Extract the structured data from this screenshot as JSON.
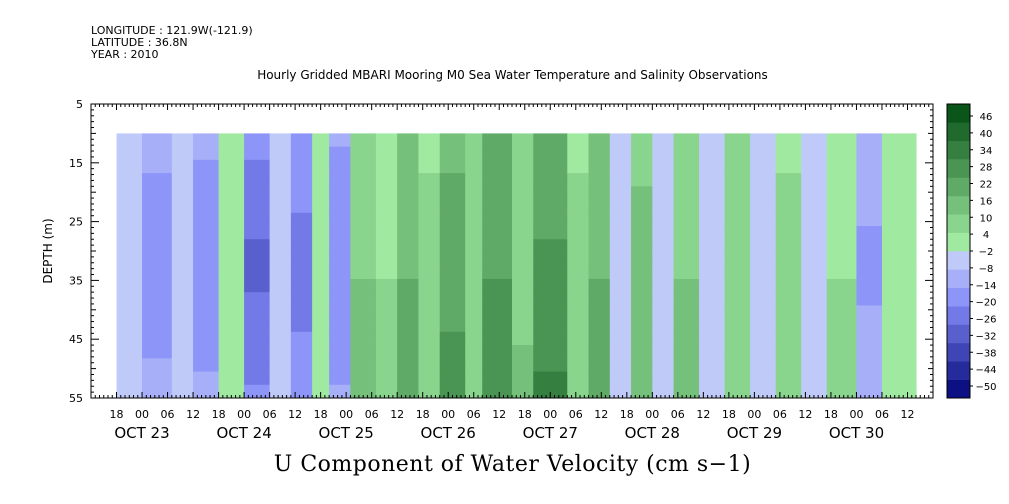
{
  "header": {
    "longitude": "LONGITUDE : 121.9W(-121.9)",
    "latitude": "LATITUDE : 36.8N",
    "year": "YEAR : 2010",
    "plot_title": "Hourly Gridded MBARI Mooring M0 Sea Water Temperature and Salinity Observations",
    "main_title": "U Component of Water Velocity (cm s−1)"
  },
  "chart_data": {
    "type": "heatmap",
    "title": "Hourly Gridded MBARI Mooring M0 Sea Water Temperature and Salinity Observations",
    "xlabel": "",
    "ylabel": "DEPTH (m)",
    "colorbar_label": "U Component of Water Velocity (cm s−1)",
    "depth_range": [
      5,
      55
    ],
    "depth_ticks": [
      "5",
      "15",
      "25",
      "35",
      "45",
      "55"
    ],
    "data_depth_range": [
      10,
      55
    ],
    "time_range": [
      "2010-10-22T12:00",
      "2010-10-30T18:00"
    ],
    "data_time_range": [
      "2010-10-22T18:00",
      "2010-10-30T14:00"
    ],
    "hour_ticks": [
      {
        "label": "18",
        "time": "2010-10-22T18:00"
      },
      {
        "label": "00",
        "time": "2010-10-23T00:00"
      },
      {
        "label": "06",
        "time": "2010-10-23T06:00"
      },
      {
        "label": "12",
        "time": "2010-10-23T12:00"
      },
      {
        "label": "18",
        "time": "2010-10-23T18:00"
      },
      {
        "label": "00",
        "time": "2010-10-24T00:00"
      },
      {
        "label": "06",
        "time": "2010-10-24T06:00"
      },
      {
        "label": "12",
        "time": "2010-10-24T12:00"
      },
      {
        "label": "18",
        "time": "2010-10-24T18:00"
      },
      {
        "label": "00",
        "time": "2010-10-25T00:00"
      },
      {
        "label": "06",
        "time": "2010-10-25T06:00"
      },
      {
        "label": "12",
        "time": "2010-10-25T12:00"
      },
      {
        "label": "18",
        "time": "2010-10-25T18:00"
      },
      {
        "label": "00",
        "time": "2010-10-26T00:00"
      },
      {
        "label": "06",
        "time": "2010-10-26T06:00"
      },
      {
        "label": "12",
        "time": "2010-10-26T12:00"
      },
      {
        "label": "18",
        "time": "2010-10-26T18:00"
      },
      {
        "label": "00",
        "time": "2010-10-27T00:00"
      },
      {
        "label": "06",
        "time": "2010-10-27T06:00"
      },
      {
        "label": "12",
        "time": "2010-10-27T12:00"
      },
      {
        "label": "18",
        "time": "2010-10-27T18:00"
      },
      {
        "label": "00",
        "time": "2010-10-28T00:00"
      },
      {
        "label": "06",
        "time": "2010-10-28T06:00"
      },
      {
        "label": "12",
        "time": "2010-10-28T12:00"
      },
      {
        "label": "18",
        "time": "2010-10-28T18:00"
      },
      {
        "label": "00",
        "time": "2010-10-29T00:00"
      },
      {
        "label": "06",
        "time": "2010-10-29T06:00"
      },
      {
        "label": "12",
        "time": "2010-10-29T12:00"
      },
      {
        "label": "18",
        "time": "2010-10-29T18:00"
      },
      {
        "label": "00",
        "time": "2010-10-30T00:00"
      },
      {
        "label": "06",
        "time": "2010-10-30T06:00"
      },
      {
        "label": "12",
        "time": "2010-10-30T12:00"
      }
    ],
    "day_labels": [
      {
        "label": "OCT 23",
        "time": "2010-10-23T00:00"
      },
      {
        "label": "OCT 24",
        "time": "2010-10-24T00:00"
      },
      {
        "label": "OCT 25",
        "time": "2010-10-25T00:00"
      },
      {
        "label": "OCT 26",
        "time": "2010-10-26T00:00"
      },
      {
        "label": "OCT 27",
        "time": "2010-10-27T00:00"
      },
      {
        "label": "OCT 28",
        "time": "2010-10-28T00:00"
      },
      {
        "label": "OCT 29",
        "time": "2010-10-29T00:00"
      },
      {
        "label": "OCT 30",
        "time": "2010-10-30T00:00"
      }
    ],
    "colorbar_levels": [
      -50,
      -44,
      -38,
      -32,
      -26,
      -20,
      -14,
      -8,
      -2,
      4,
      10,
      16,
      22,
      28,
      34,
      40,
      46
    ],
    "colorbar_ticks": [
      "46",
      "40",
      "34",
      "28",
      "22",
      "16",
      "10",
      "4",
      "−2",
      "−8",
      "−14",
      "−20",
      "−26",
      "−32",
      "−38",
      "−44",
      "−50"
    ],
    "value_bands": [
      {
        "start": "2010-10-22T18:00",
        "end": "2010-10-23T00:00",
        "value": -6
      },
      {
        "start": "2010-10-23T00:00",
        "end": "2010-10-23T07:00",
        "value": -14
      },
      {
        "start": "2010-10-23T07:00",
        "end": "2010-10-23T12:00",
        "value": -3
      },
      {
        "start": "2010-10-23T12:00",
        "end": "2010-10-23T18:00",
        "value": -15
      },
      {
        "start": "2010-10-23T18:00",
        "end": "2010-10-24T00:00",
        "value": -1
      },
      {
        "start": "2010-10-24T00:00",
        "end": "2010-10-24T06:00",
        "value": -22
      },
      {
        "start": "2010-10-24T06:00",
        "end": "2010-10-24T11:00",
        "value": -6
      },
      {
        "start": "2010-10-24T11:00",
        "end": "2010-10-24T16:00",
        "value": -18
      },
      {
        "start": "2010-10-24T16:00",
        "end": "2010-10-24T20:00",
        "value": 3
      },
      {
        "start": "2010-10-24T20:00",
        "end": "2010-10-25T01:00",
        "value": -16
      },
      {
        "start": "2010-10-25T01:00",
        "end": "2010-10-25T07:00",
        "value": 10
      },
      {
        "start": "2010-10-25T07:00",
        "end": "2010-10-25T12:00",
        "value": 4
      },
      {
        "start": "2010-10-25T12:00",
        "end": "2010-10-25T17:00",
        "value": 16
      },
      {
        "start": "2010-10-25T17:00",
        "end": "2010-10-25T22:00",
        "value": 5
      },
      {
        "start": "2010-10-25T22:00",
        "end": "2010-10-26T04:00",
        "value": 20
      },
      {
        "start": "2010-10-26T04:00",
        "end": "2010-10-26T08:00",
        "value": 6
      },
      {
        "start": "2010-10-26T08:00",
        "end": "2010-10-26T15:00",
        "value": 22
      },
      {
        "start": "2010-10-26T15:00",
        "end": "2010-10-26T20:00",
        "value": 9
      },
      {
        "start": "2010-10-26T20:00",
        "end": "2010-10-27T04:00",
        "value": 24
      },
      {
        "start": "2010-10-27T04:00",
        "end": "2010-10-27T09:00",
        "value": 5
      },
      {
        "start": "2010-10-27T09:00",
        "end": "2010-10-27T14:00",
        "value": 16
      },
      {
        "start": "2010-10-27T14:00",
        "end": "2010-10-27T19:00",
        "value": -4
      },
      {
        "start": "2010-10-27T19:00",
        "end": "2010-10-28T00:00",
        "value": 12
      },
      {
        "start": "2010-10-28T00:00",
        "end": "2010-10-28T05:00",
        "value": -5
      },
      {
        "start": "2010-10-28T05:00",
        "end": "2010-10-28T11:00",
        "value": 10
      },
      {
        "start": "2010-10-28T11:00",
        "end": "2010-10-28T17:00",
        "value": -5
      },
      {
        "start": "2010-10-28T17:00",
        "end": "2010-10-28T23:00",
        "value": 8
      },
      {
        "start": "2010-10-28T23:00",
        "end": "2010-10-29T05:00",
        "value": -4
      },
      {
        "start": "2010-10-29T05:00",
        "end": "2010-10-29T11:00",
        "value": 5
      },
      {
        "start": "2010-10-29T11:00",
        "end": "2010-10-29T17:00",
        "value": -3
      },
      {
        "start": "2010-10-29T17:00",
        "end": "2010-10-30T00:00",
        "value": 4
      },
      {
        "start": "2010-10-30T00:00",
        "end": "2010-10-30T06:00",
        "value": -12
      },
      {
        "start": "2010-10-30T06:00",
        "end": "2010-10-30T14:00",
        "value": 3
      }
    ],
    "colors": {
      "missing": "#ffffff",
      "strong_negative": "#1f22c4",
      "negative": "#8e99ec",
      "near_zero": "#b9c3f4",
      "positive": "#59e06d",
      "strong_positive": "#14b735"
    }
  }
}
